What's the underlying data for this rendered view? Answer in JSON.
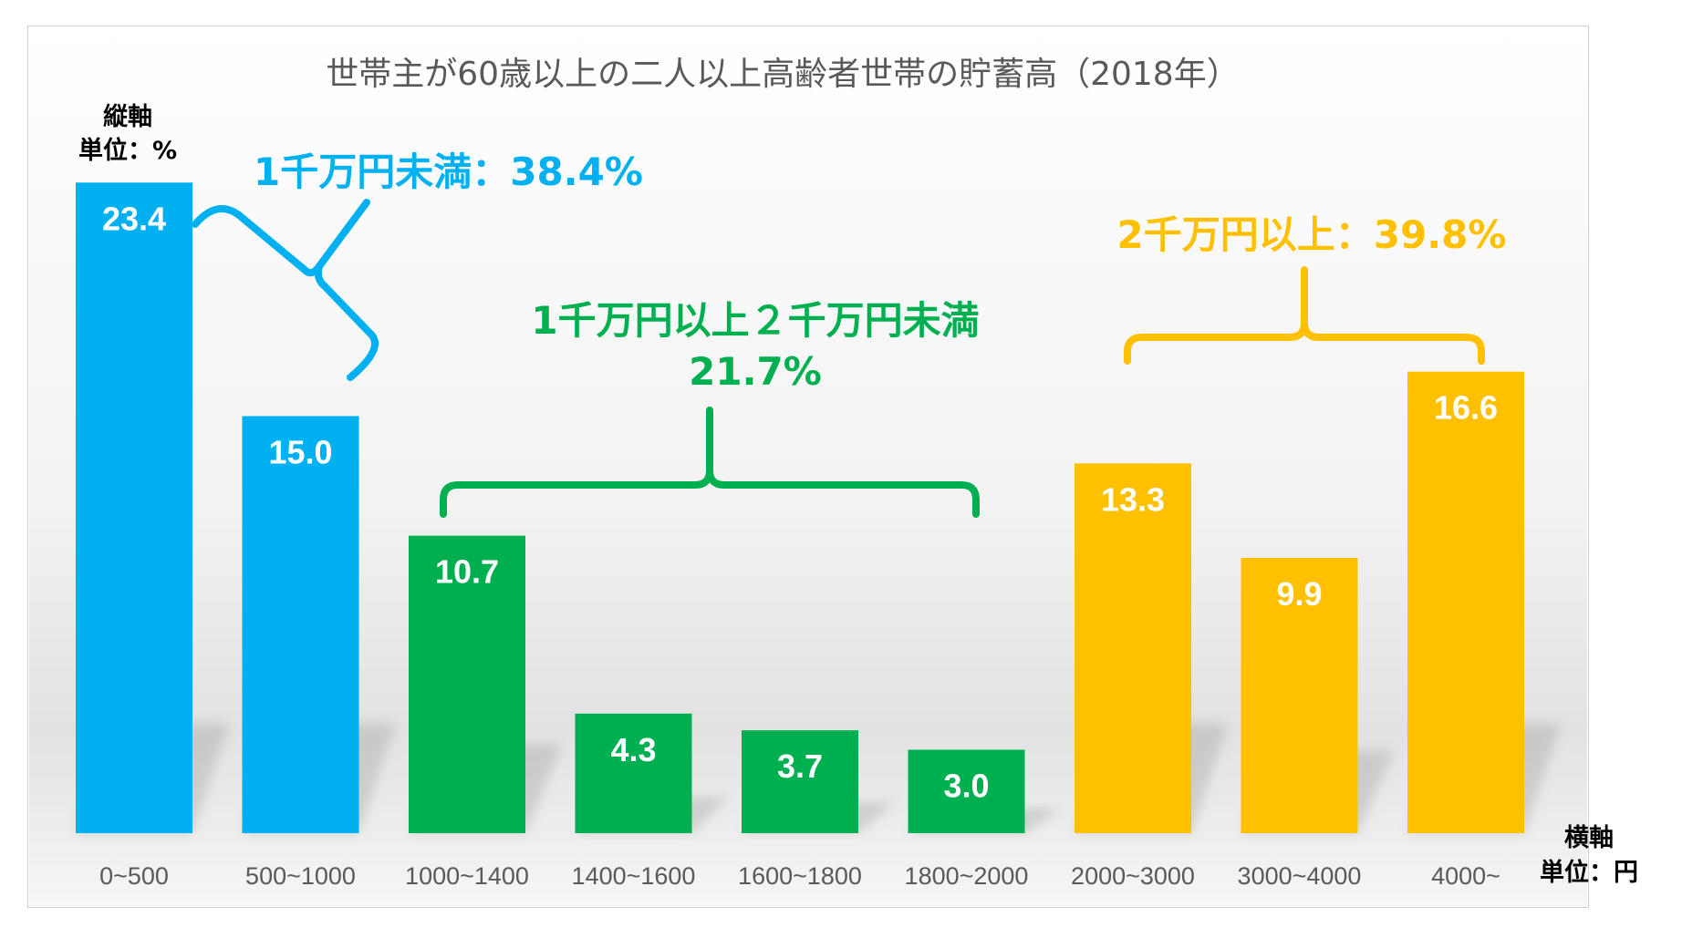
{
  "chart_data": {
    "type": "bar",
    "title": "世帯主が60歳以上の二人以上高齢者世帯の貯蓄高（2018年）",
    "y_axis_note": [
      "縦軸",
      "単位：%"
    ],
    "x_axis_note": [
      "横軸",
      "単位：円"
    ],
    "categories": [
      "0~500",
      "500~1000",
      "1000~1400",
      "1400~1600",
      "1600~1800",
      "1800~2000",
      "2000~3000",
      "3000~4000",
      "4000~"
    ],
    "values": [
      23.4,
      15.0,
      10.7,
      4.3,
      3.7,
      3.0,
      13.3,
      9.9,
      16.6
    ],
    "value_labels": [
      "23.4",
      "15.0",
      "10.7",
      "4.3",
      "3.7",
      "3.0",
      "13.3",
      "9.9",
      "16.6"
    ],
    "bar_colors": [
      "#00b0f0",
      "#00b0f0",
      "#00b050",
      "#00b050",
      "#00b050",
      "#00b050",
      "#ffc000",
      "#ffc000",
      "#ffc000"
    ],
    "groups": [
      {
        "label_lines": [
          "1千万円未満：38.4%"
        ],
        "color": "#00b0f0",
        "from": 0,
        "to": 1
      },
      {
        "label_lines": [
          "1千万円以上２千万円未満",
          "21.7%"
        ],
        "color": "#00b050",
        "from": 2,
        "to": 5
      },
      {
        "label_lines": [
          "2千万円以上：39.8%"
        ],
        "color": "#ffc000",
        "from": 6,
        "to": 8
      }
    ],
    "ylim": [
      0,
      23.4
    ],
    "grid": false,
    "legend": "none"
  }
}
